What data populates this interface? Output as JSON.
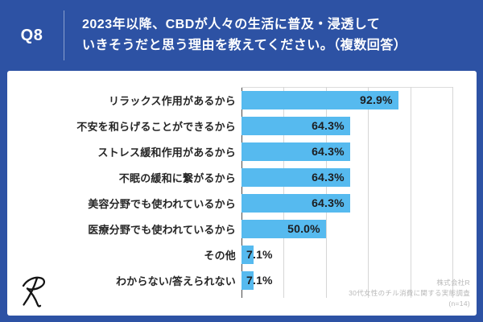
{
  "colors": {
    "background": "#2d52a4",
    "card": "#ffffff",
    "bar": "#56baef",
    "gridline": "#d6d6d6",
    "axis": "#4a4a4a",
    "category_text": "#262626",
    "value_text": "#1d1d1f",
    "header_text": "#ffffff",
    "source_text": "#b8b8b8"
  },
  "header": {
    "question_number": "Q8",
    "title_line1": "2023年以降、CBDが人々の生活に普及・浸透して",
    "title_line2": "いきそうだと思う理由を教えてください。（複数回答）"
  },
  "chart_data": {
    "type": "bar",
    "orientation": "horizontal",
    "title": "",
    "xlabel": "",
    "ylabel": "",
    "categories": [
      "リラックス作用があるから",
      "不安を和らげることができるから",
      "ストレス緩和作用があるから",
      "不眠の緩和に繋がるから",
      "美容分野でも使われているから",
      "医療分野でも使われているから",
      "その他",
      "わからない/答えられない"
    ],
    "values": [
      92.9,
      64.3,
      64.3,
      64.3,
      64.3,
      50.0,
      7.1,
      7.1
    ],
    "value_labels": [
      "92.9%",
      "64.3%",
      "64.3%",
      "64.3%",
      "64.3%",
      "50.0%",
      "7.1%",
      "7.1%"
    ],
    "xlim": [
      0,
      125
    ],
    "gridline_interval": 25,
    "grid": true,
    "legend_position": "none",
    "bar_color": "#56baef"
  },
  "footer": {
    "logo": "R",
    "source_lines": [
      "株式会社R",
      "30代女性のチル消費に関する実態調査",
      "(n=14)"
    ]
  }
}
